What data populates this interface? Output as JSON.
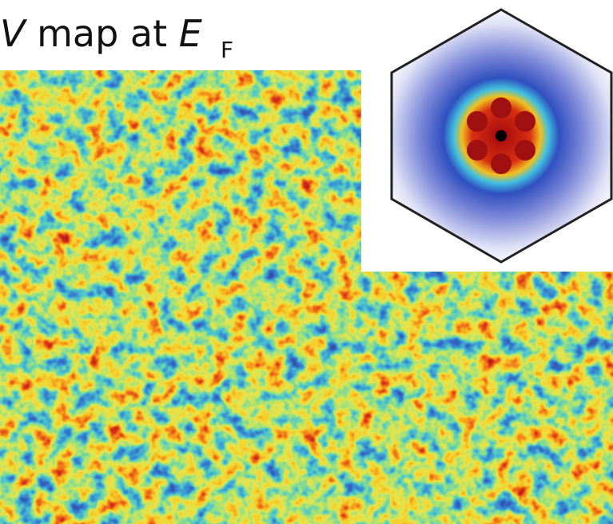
{
  "title": {
    "variable": "V",
    "text": "map at",
    "energy": "E",
    "subscript": "F"
  }
}
